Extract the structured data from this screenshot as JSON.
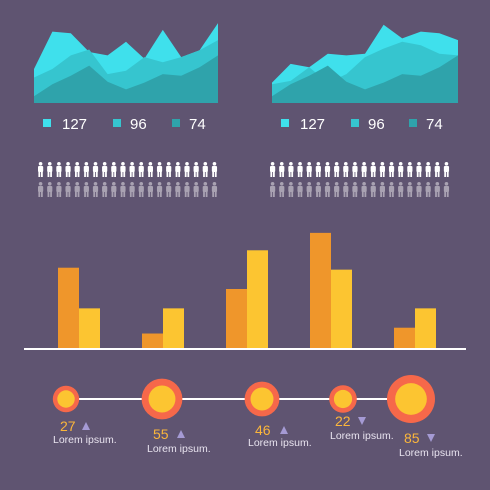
{
  "theme": {
    "background": "#5f5471",
    "cyan_light": "#3fe0ec",
    "cyan_mid": "#36c5cf",
    "teal_dark": "#2fa3ab",
    "orange": "#ef962b",
    "yellow": "#fcc531",
    "coral": "#f6684a",
    "white": "#ffffff",
    "grey": "#a9a2b2",
    "text_orange": "#fbb63b",
    "text_grey": "#e8e3ef",
    "triangle": "#a59ad4"
  },
  "chart_data": [
    {
      "type": "area",
      "series": [
        {
          "color": "#3fe0ec",
          "values": [
            4,
            8.4,
            8.2,
            6,
            5.6,
            7.2,
            5.2,
            8.6,
            5.4,
            6.2,
            9.4
          ]
        },
        {
          "color": "#36c5cf",
          "values": [
            3,
            4,
            5.6,
            6.3,
            3.4,
            3.8,
            5.4,
            4.8,
            5.4,
            6.2,
            7.4
          ]
        },
        {
          "color": "#2fa3ab",
          "values": [
            0.8,
            2.2,
            3.2,
            4.4,
            2.5,
            1.6,
            2.4,
            3.4,
            3.2,
            4.2,
            5.6
          ]
        }
      ],
      "legend": [
        {
          "label": "127",
          "color": "#3fe0ec"
        },
        {
          "label": "96",
          "color": "#36c5cf"
        },
        {
          "label": "74",
          "color": "#2fa3ab"
        }
      ]
    },
    {
      "type": "area",
      "series": [
        {
          "color": "#3fe0ec",
          "values": [
            2.4,
            4.6,
            4.2,
            5.8,
            5.6,
            5.8,
            9.2,
            7.6,
            8.4,
            8.2,
            7.4
          ]
        },
        {
          "color": "#36c5cf",
          "values": [
            2.2,
            2.6,
            4.2,
            2.4,
            3.4,
            5.4,
            6.4,
            7.2,
            6.8,
            5.8,
            5.6
          ]
        },
        {
          "color": "#2fa3ab",
          "values": [
            0.8,
            2.2,
            3.2,
            4.4,
            2.5,
            1.6,
            2.4,
            3.4,
            3.2,
            4.2,
            5.6
          ]
        }
      ],
      "legend": [
        {
          "label": "127",
          "color": "#3fe0ec"
        },
        {
          "label": "96",
          "color": "#36c5cf"
        },
        {
          "label": "74",
          "color": "#2fa3ab"
        }
      ]
    },
    {
      "type": "bar",
      "series": [
        {
          "color": "#ef962b",
          "values": [
            42,
            8,
            31,
            60,
            11
          ]
        },
        {
          "color": "#fcc531",
          "values": [
            21,
            21,
            51,
            41,
            21
          ]
        }
      ],
      "ylim": [
        0,
        62
      ]
    }
  ],
  "people": [
    {
      "highlighted": 20,
      "total": 40
    },
    {
      "highlighted": 18,
      "total": 40
    }
  ],
  "timeline": [
    {
      "value": "27",
      "direction": "up",
      "label": "Lorem ipsum.",
      "size": 1.2
    },
    {
      "value": "55",
      "direction": "up",
      "label": "Lorem ipsum.",
      "size": 2.4
    },
    {
      "value": "46",
      "direction": "up",
      "label": "Lorem ipsum.",
      "size": 1.9
    },
    {
      "value": "22",
      "direction": "down",
      "label": "Lorem ipsum.",
      "size": 1.3
    },
    {
      "value": "85",
      "direction": "down",
      "label": "Lorem ipsum.",
      "size": 3.0
    }
  ]
}
